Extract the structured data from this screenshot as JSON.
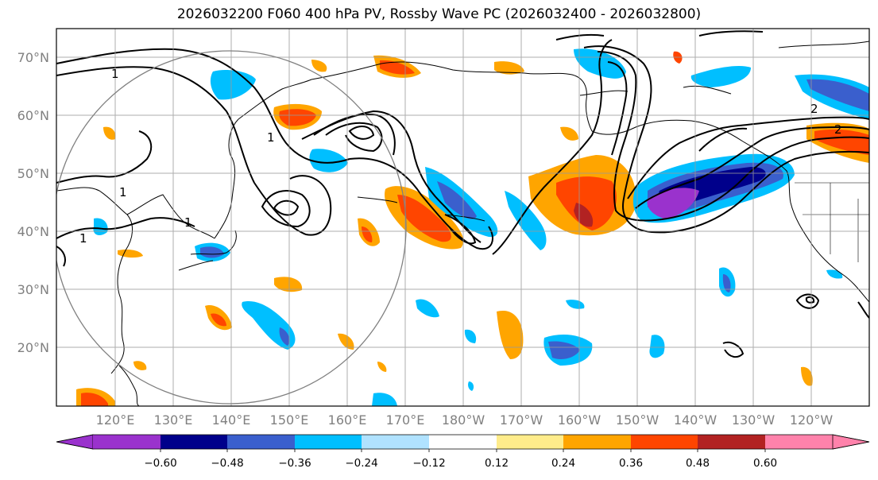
{
  "title": "2026032200 F060 400 hPa PV, Rossby Wave PC (2026032400 - 2026032800)",
  "lat_labels": [
    "70°N",
    "60°N",
    "50°N",
    "40°N",
    "30°N",
    "20°N"
  ],
  "lon_labels": [
    "120°E",
    "130°E",
    "140°E",
    "150°E",
    "160°E",
    "170°E",
    "180°W",
    "170°W",
    "160°W",
    "150°W",
    "140°W",
    "130°W",
    "120°W"
  ],
  "contour_labels": [
    "1",
    "1",
    "1",
    "1",
    "1",
    "2",
    "2"
  ],
  "colorbar": {
    "colors": [
      "#9a32cd",
      "#00008b",
      "#3a5fcd",
      "#00bfff",
      "#b0e2ff",
      "#ffffff",
      "#ffec8b",
      "#ffa500",
      "#ff4500",
      "#b22222",
      "#ff82ab"
    ],
    "tick_labels": [
      "−0.60",
      "−0.48",
      "−0.36",
      "−0.24",
      "−0.12",
      "0.12",
      "0.24",
      "0.36",
      "0.48",
      "0.60"
    ]
  }
}
